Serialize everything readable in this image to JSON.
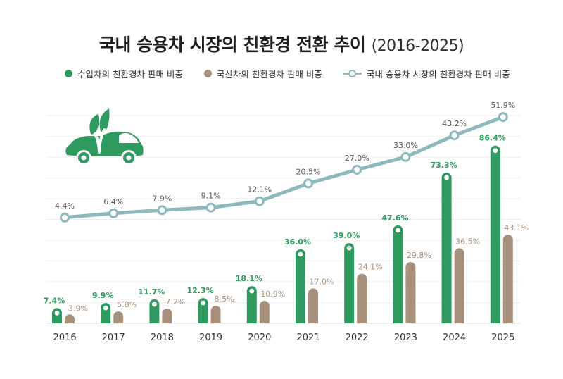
{
  "title": "국내 승용차 시장의 친환경 전환 추이",
  "subtitle": "(2016-2025)",
  "colors": {
    "imported": "#2e9a5f",
    "domestic": "#a8917c",
    "total": "#8db8bd",
    "logo": "#2e9a5f"
  },
  "logo_icon": "eco-car-leaf-icon",
  "chart_data": {
    "type": "bar",
    "categories": [
      "2016",
      "2017",
      "2018",
      "2019",
      "2020",
      "2021",
      "2022",
      "2023",
      "2024",
      "2025"
    ],
    "series": [
      {
        "name": "수입차의 친환경차 판매 비중",
        "type": "bar",
        "values": [
          7.4,
          9.9,
          11.7,
          12.3,
          18.1,
          36.0,
          39.0,
          47.6,
          73.3,
          86.4
        ],
        "labels": [
          "7.4%",
          "9.9%",
          "11.7%",
          "12.3%",
          "18.1%",
          "36.0%",
          "39.0%",
          "47.6%",
          "73.3%",
          "86.4%"
        ]
      },
      {
        "name": "국산차의 친환경차 판매 비중",
        "type": "bar",
        "values": [
          3.9,
          5.8,
          7.2,
          8.5,
          10.9,
          17.0,
          24.1,
          29.8,
          36.5,
          43.1
        ],
        "labels": [
          "3.9%",
          "5.8%",
          "7.2%",
          "8.5%",
          "10.9%",
          "17.0%",
          "24.1%",
          "29.8%",
          "36.5%",
          "43.1%"
        ]
      },
      {
        "name": "국내 승용차 시장의 친환경차 판매 비중",
        "type": "line",
        "values": [
          4.4,
          6.4,
          7.9,
          9.1,
          12.1,
          20.5,
          27.0,
          33.0,
          43.2,
          51.9
        ],
        "labels": [
          "4.4%",
          "6.4%",
          "7.9%",
          "9.1%",
          "12.1%",
          "20.5%",
          "27.0%",
          "33.0%",
          "43.2%",
          "51.9%"
        ]
      }
    ],
    "legend_position": "top",
    "grid": true,
    "ylim": [
      0,
      100
    ]
  }
}
